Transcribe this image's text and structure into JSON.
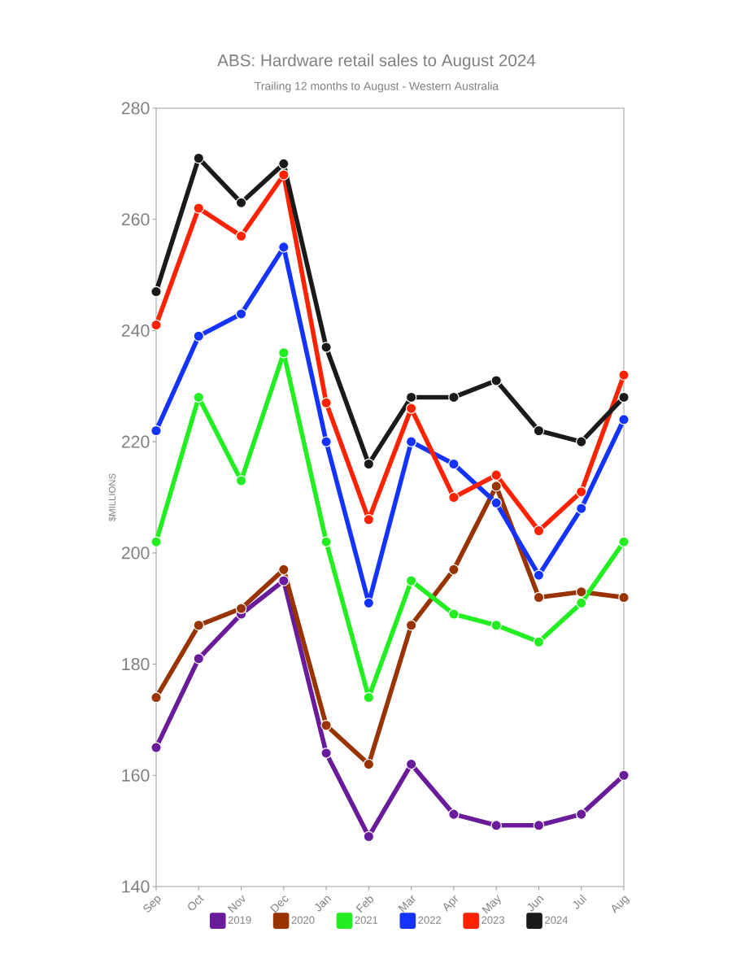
{
  "chart_data": {
    "type": "line",
    "title": "ABS: Hardware retail sales to August 2024",
    "subtitle": "Trailing 12 months to August - Western Australia",
    "ylabel": "$MILLIONS",
    "categories": [
      "Sep",
      "Oct",
      "Nov",
      "Dec",
      "Jan",
      "Feb",
      "Mar",
      "Apr",
      "May",
      "Jun",
      "Jul",
      "Aug"
    ],
    "series": [
      {
        "name": "2019",
        "color": "#6a1b9a",
        "values": [
          165,
          181,
          189,
          195,
          164,
          149,
          162,
          153,
          151,
          151,
          153,
          160
        ]
      },
      {
        "name": "2020",
        "color": "#993300",
        "values": [
          174,
          187,
          190,
          197,
          169,
          162,
          187,
          197,
          212,
          192,
          193,
          192
        ]
      },
      {
        "name": "2021",
        "color": "#22ee22",
        "values": [
          202,
          228,
          213,
          236,
          202,
          174,
          195,
          189,
          187,
          184,
          191,
          202
        ]
      },
      {
        "name": "2022",
        "color": "#1433ff",
        "values": [
          222,
          239,
          243,
          255,
          220,
          191,
          220,
          216,
          209,
          196,
          208,
          224
        ]
      },
      {
        "name": "2023",
        "color": "#ff2200",
        "values": [
          241,
          262,
          257,
          268,
          227,
          206,
          226,
          210,
          214,
          204,
          211,
          232
        ]
      },
      {
        "name": "2024",
        "color": "#1a1a1a",
        "values": [
          247,
          271,
          263,
          270,
          237,
          216,
          228,
          228,
          231,
          222,
          220,
          228
        ]
      }
    ],
    "ylim": [
      140,
      280
    ],
    "yticks": [
      140,
      160,
      180,
      200,
      220,
      240,
      260,
      280
    ],
    "legend": "bottom",
    "marker": "circle",
    "line_style": "solid"
  }
}
